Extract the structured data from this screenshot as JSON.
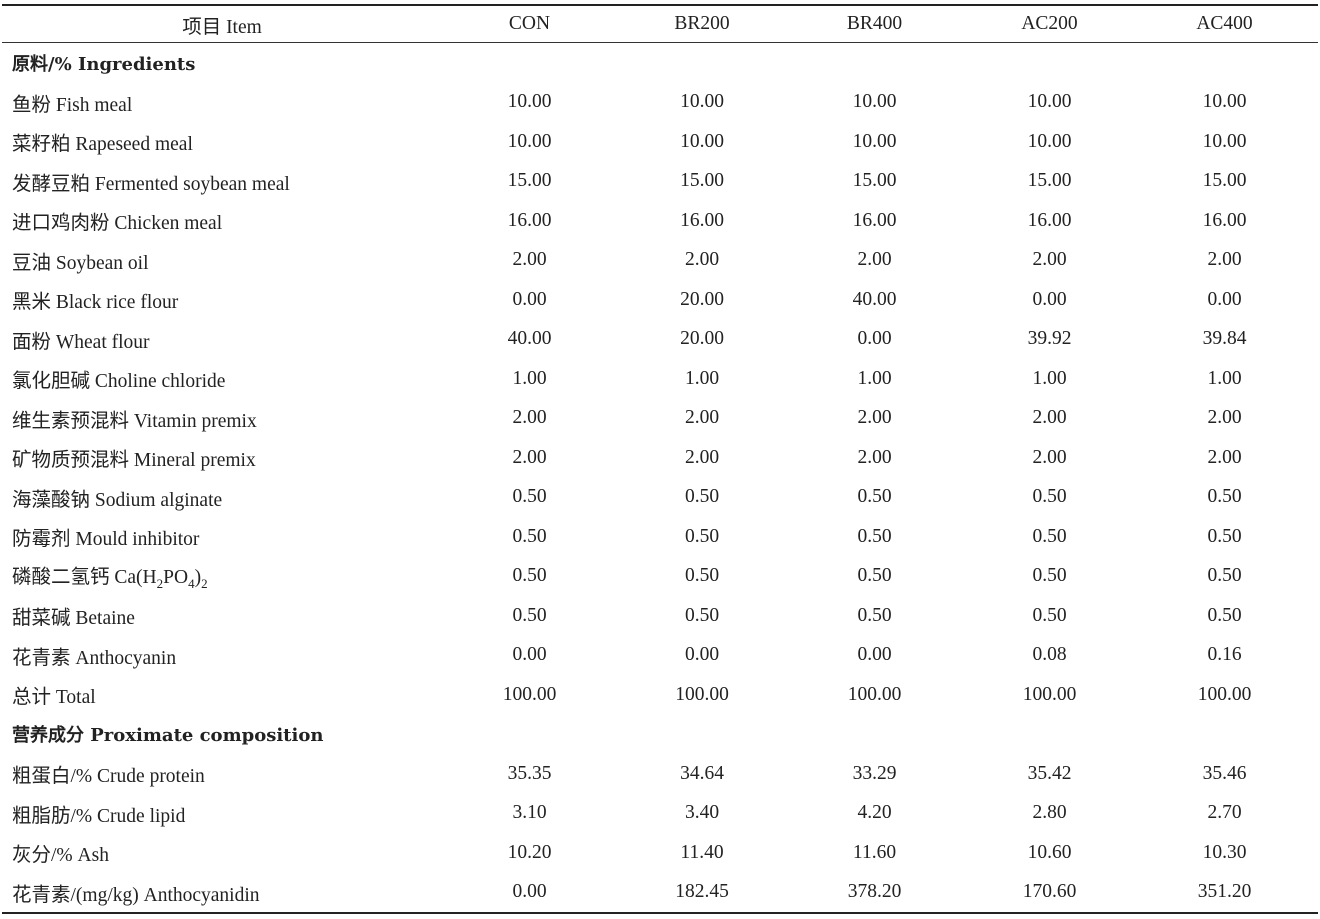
{
  "table": {
    "headers": [
      "项目 Item",
      "CON",
      "BR200",
      "BR400",
      "AC200",
      "AC400"
    ],
    "sections": [
      {
        "title": "原料/% Ingredients",
        "rows": [
          {
            "label": "鱼粉 Fish meal",
            "values": [
              "10.00",
              "10.00",
              "10.00",
              "10.00",
              "10.00"
            ]
          },
          {
            "label": "菜籽粕 Rapeseed meal",
            "values": [
              "10.00",
              "10.00",
              "10.00",
              "10.00",
              "10.00"
            ]
          },
          {
            "label": "发酵豆粕 Fermented soybean meal",
            "values": [
              "15.00",
              "15.00",
              "15.00",
              "15.00",
              "15.00"
            ]
          },
          {
            "label": "进口鸡肉粉 Chicken meal",
            "values": [
              "16.00",
              "16.00",
              "16.00",
              "16.00",
              "16.00"
            ]
          },
          {
            "label": "豆油 Soybean oil",
            "values": [
              "2.00",
              "2.00",
              "2.00",
              "2.00",
              "2.00"
            ]
          },
          {
            "label": "黑米 Black rice flour",
            "values": [
              "0.00",
              "20.00",
              "40.00",
              "0.00",
              "0.00"
            ]
          },
          {
            "label": "面粉 Wheat flour",
            "values": [
              "40.00",
              "20.00",
              "0.00",
              "39.92",
              "39.84"
            ]
          },
          {
            "label": "氯化胆碱 Choline chloride",
            "values": [
              "1.00",
              "1.00",
              "1.00",
              "1.00",
              "1.00"
            ]
          },
          {
            "label": "维生素预混料 Vitamin premix",
            "values": [
              "2.00",
              "2.00",
              "2.00",
              "2.00",
              "2.00"
            ]
          },
          {
            "label": "矿物质预混料 Mineral premix",
            "values": [
              "2.00",
              "2.00",
              "2.00",
              "2.00",
              "2.00"
            ]
          },
          {
            "label": "海藻酸钠 Sodium alginate",
            "values": [
              "0.50",
              "0.50",
              "0.50",
              "0.50",
              "0.50"
            ]
          },
          {
            "label": "防霉剂 Mould inhibitor",
            "values": [
              "0.50",
              "0.50",
              "0.50",
              "0.50",
              "0.50"
            ]
          },
          {
            "label": "磷酸二氢钙 Ca(H2PO4)2",
            "values": [
              "0.50",
              "0.50",
              "0.50",
              "0.50",
              "0.50"
            ]
          },
          {
            "label": "甜菜碱 Betaine",
            "values": [
              "0.50",
              "0.50",
              "0.50",
              "0.50",
              "0.50"
            ]
          },
          {
            "label": "花青素 Anthocyanin",
            "values": [
              "0.00",
              "0.00",
              "0.00",
              "0.08",
              "0.16"
            ]
          },
          {
            "label": "总计 Total",
            "values": [
              "100.00",
              "100.00",
              "100.00",
              "100.00",
              "100.00"
            ]
          }
        ]
      },
      {
        "title": "营养成分 Proximate composition",
        "rows": [
          {
            "label": "粗蛋白/% Crude protein",
            "values": [
              "35.35",
              "34.64",
              "33.29",
              "35.42",
              "35.46"
            ]
          },
          {
            "label": "粗脂肪/% Crude lipid",
            "values": [
              "3.10",
              "3.40",
              "4.20",
              "2.80",
              "2.70"
            ]
          },
          {
            "label": "灰分/% Ash",
            "values": [
              "10.20",
              "11.40",
              "11.60",
              "10.60",
              "10.30"
            ]
          },
          {
            "label": "花青素/(mg/kg) Anthocyanidin",
            "values": [
              "0.00",
              "182.45",
              "378.20",
              "170.60",
              "351.20"
            ]
          }
        ]
      }
    ]
  }
}
